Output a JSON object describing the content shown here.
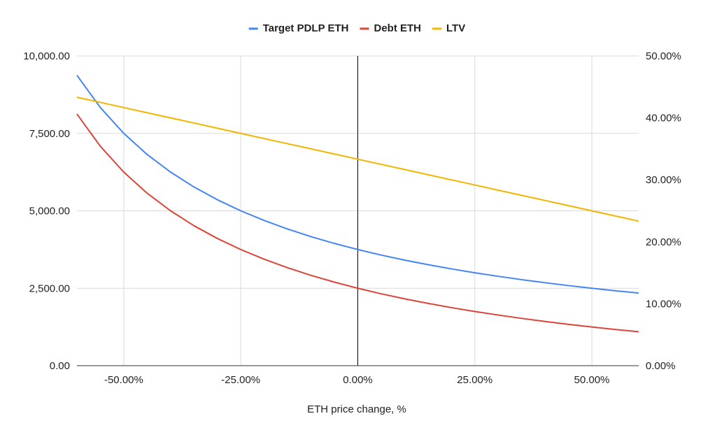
{
  "chart_data": {
    "type": "line",
    "title": "",
    "xlabel": "ETH price change, %",
    "ylabel": "",
    "y2label": "",
    "xlim": [
      -0.6,
      0.6
    ],
    "ylim": [
      0,
      10000
    ],
    "y2lim": [
      0,
      0.5
    ],
    "x_ticks": [
      -0.5,
      -0.25,
      0,
      0.25,
      0.5
    ],
    "x_tick_labels": [
      "-50.00%",
      "-25.00%",
      "0.00%",
      "25.00%",
      "50.00%"
    ],
    "y_ticks": [
      0,
      2500,
      5000,
      7500,
      10000
    ],
    "y_tick_labels": [
      "0.00",
      "2,500.00",
      "5,000.00",
      "7,500.00",
      "10,000.00"
    ],
    "y2_ticks": [
      0,
      0.1,
      0.2,
      0.3,
      0.4,
      0.5
    ],
    "y2_tick_labels": [
      "0.00%",
      "10.00%",
      "20.00%",
      "30.00%",
      "40.00%",
      "50.00%"
    ],
    "grid": true,
    "legend_position": "top-center",
    "x": [
      -0.6,
      -0.55,
      -0.5,
      -0.45,
      -0.4,
      -0.35,
      -0.3,
      -0.25,
      -0.2,
      -0.15,
      -0.1,
      -0.05,
      0,
      0.05,
      0.1,
      0.15,
      0.2,
      0.25,
      0.3,
      0.35,
      0.4,
      0.45,
      0.5,
      0.55,
      0.6
    ],
    "series": [
      {
        "name": "Target PDLP ETH",
        "axis": "left",
        "color": "#4285f4",
        "values": [
          9375,
          8333,
          7500,
          6818,
          6250,
          5769,
          5357,
          5000,
          4688,
          4412,
          4167,
          3947,
          3750,
          3571,
          3409,
          3261,
          3125,
          3000,
          2885,
          2778,
          2679,
          2586,
          2500,
          2419,
          2344
        ]
      },
      {
        "name": "Debt ETH",
        "axis": "left",
        "color": "#db4437",
        "values": [
          8125,
          7083,
          6250,
          5568,
          5000,
          4519,
          4107,
          3750,
          3438,
          3162,
          2917,
          2697,
          2500,
          2321,
          2159,
          2011,
          1875,
          1750,
          1635,
          1528,
          1429,
          1336,
          1250,
          1169,
          1094
        ]
      },
      {
        "name": "LTV",
        "axis": "right",
        "color": "#f4b400",
        "values": [
          0.4333,
          0.425,
          0.4167,
          0.4083,
          0.4,
          0.3917,
          0.3833,
          0.375,
          0.3667,
          0.3583,
          0.35,
          0.3417,
          0.3333,
          0.325,
          0.3167,
          0.3083,
          0.3,
          0.2917,
          0.2833,
          0.275,
          0.2667,
          0.2583,
          0.25,
          0.2417,
          0.2333
        ]
      }
    ]
  }
}
